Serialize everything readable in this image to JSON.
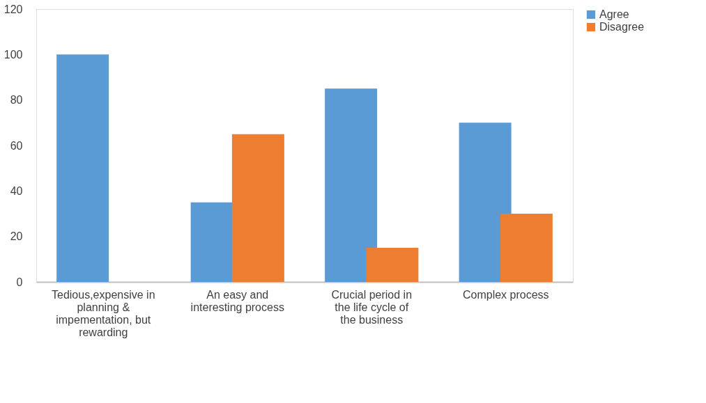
{
  "chart_data": {
    "type": "bar",
    "categories": [
      "Tedious,expensive in planning & impementation, but rewarding",
      "An easy and interesting process",
      "Crucial period in the life cycle of the business",
      "Complex process"
    ],
    "series": [
      {
        "name": "Agree",
        "color": "#5b9bd5",
        "values": [
          100,
          35,
          85,
          70
        ]
      },
      {
        "name": "Disagree",
        "color": "#ed7d31",
        "values": [
          0,
          65,
          15,
          30
        ]
      }
    ],
    "ylim": [
      0,
      120
    ],
    "yticks": [
      0,
      20,
      40,
      60,
      80,
      100,
      120
    ],
    "grid": false,
    "legend": "right"
  }
}
